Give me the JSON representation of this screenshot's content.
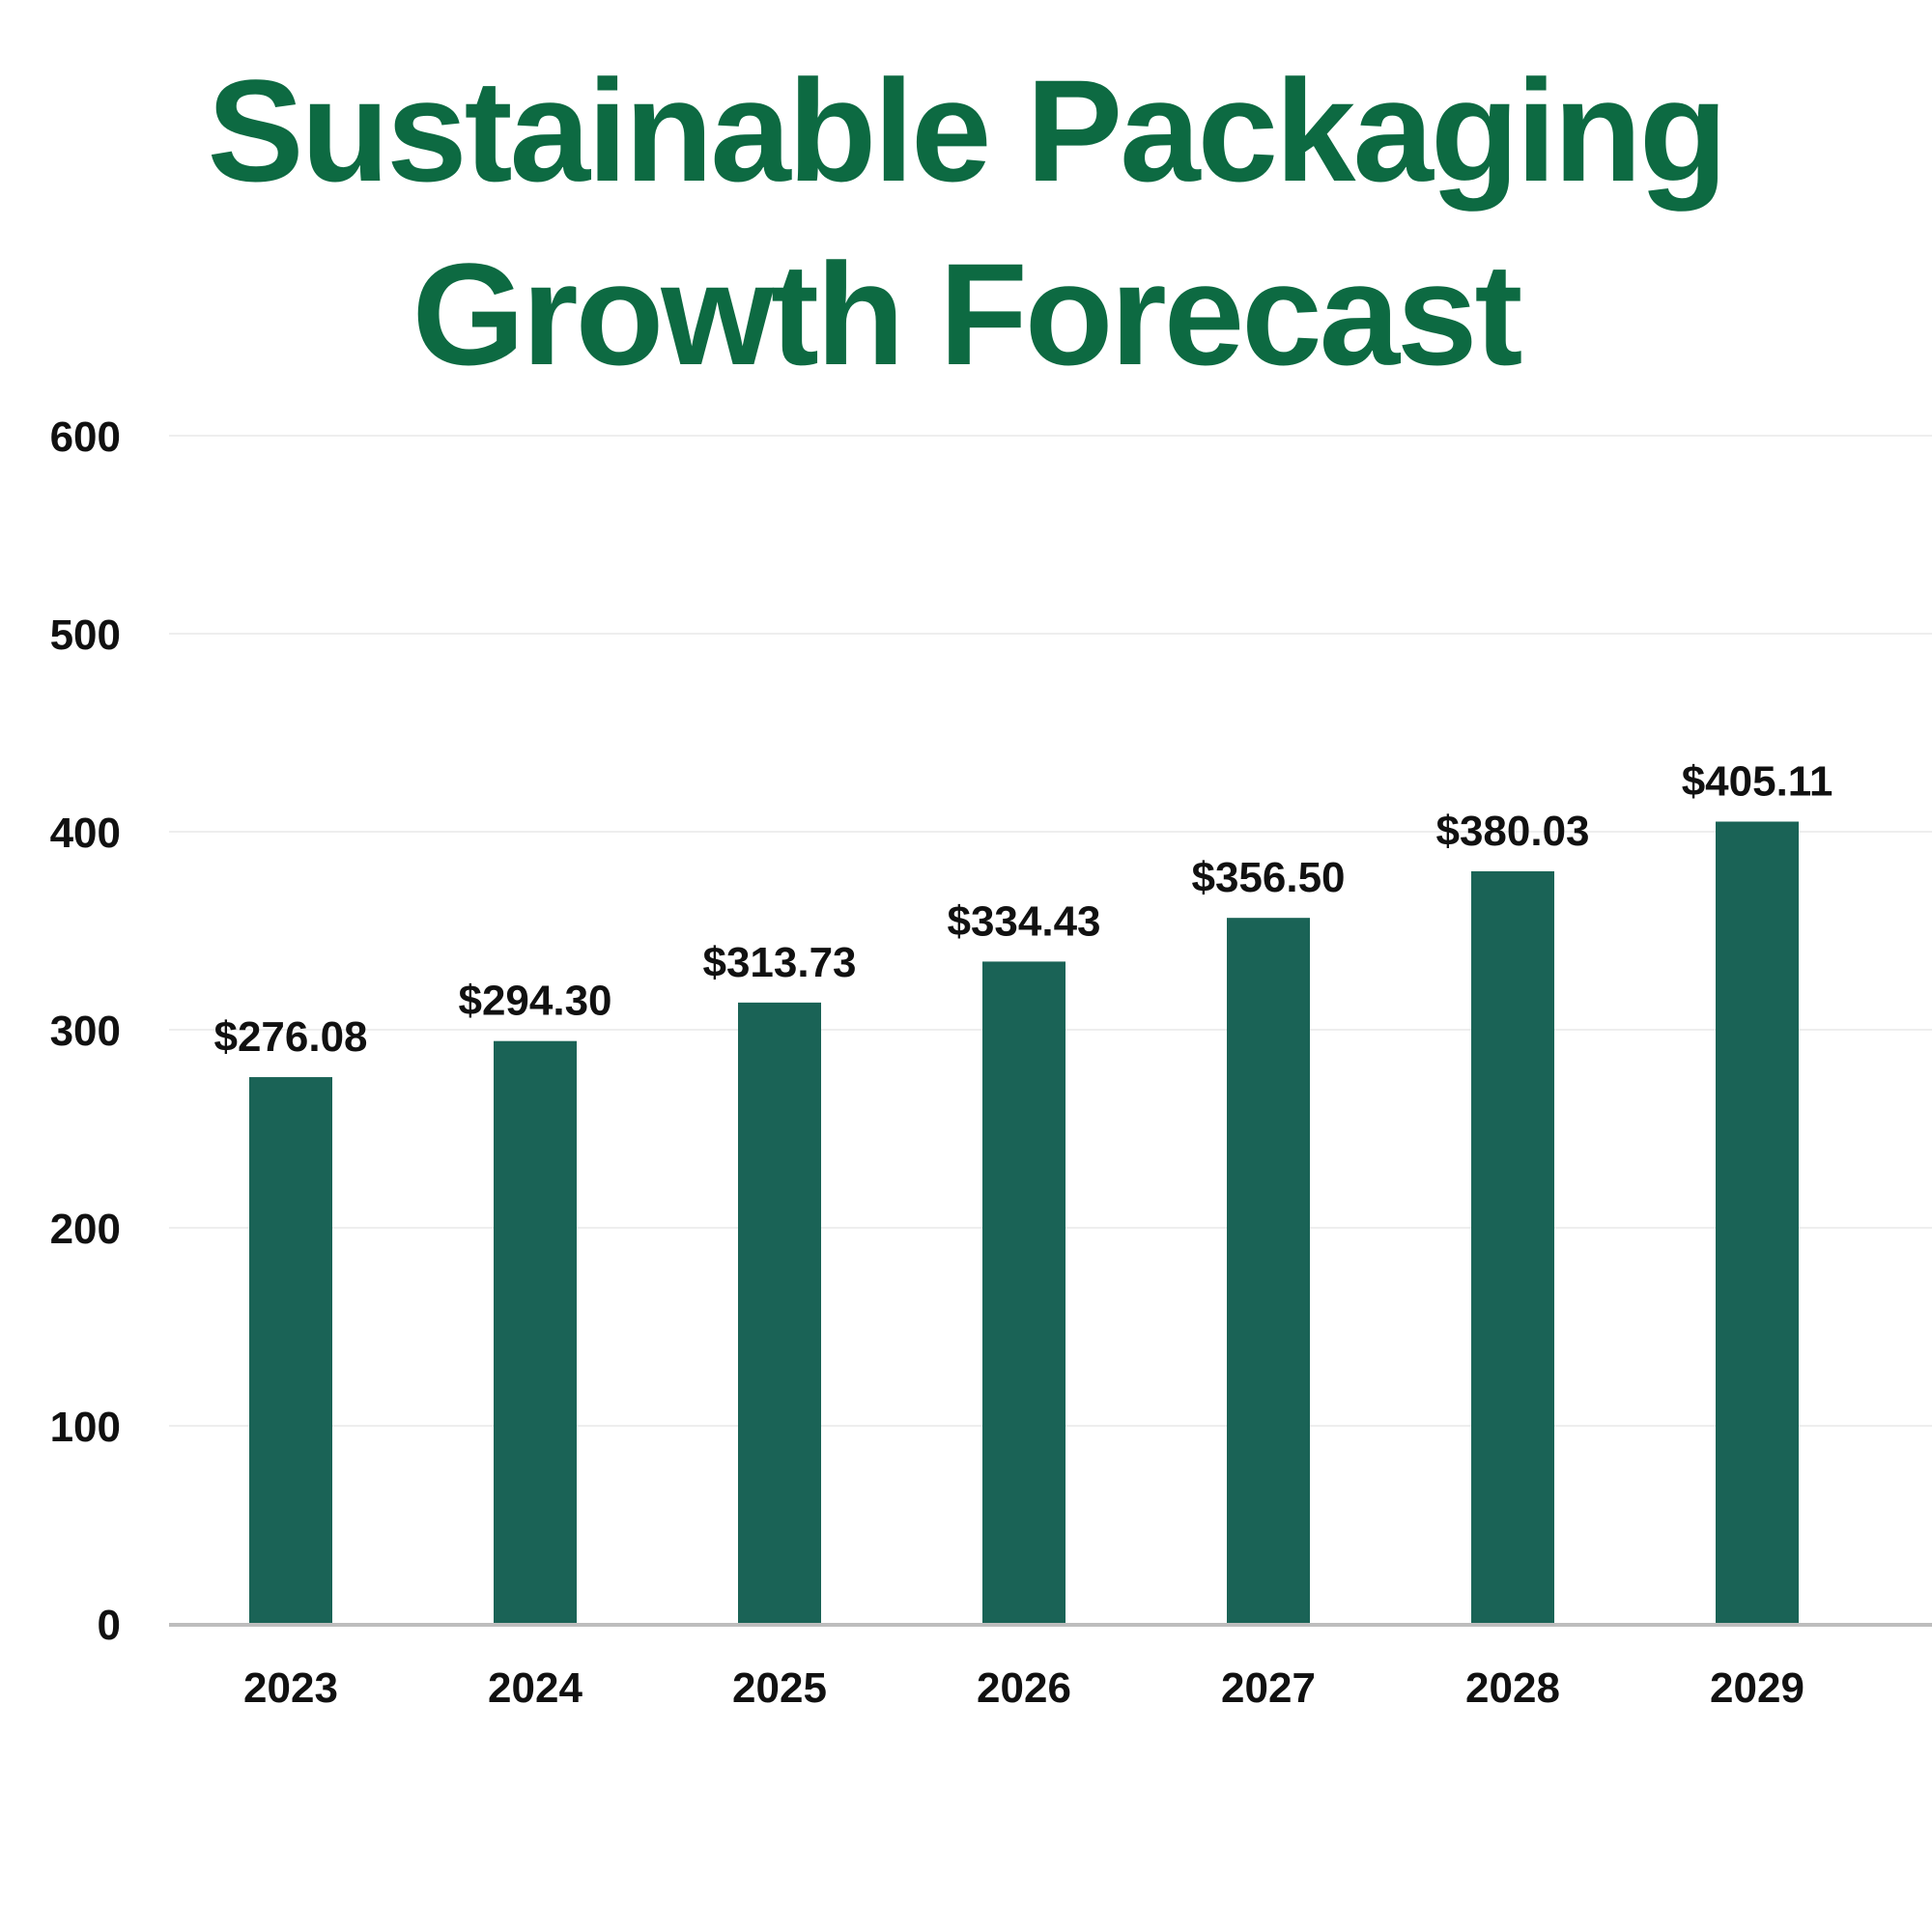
{
  "chart_data": {
    "type": "bar",
    "title_lines": [
      "Sustainable Packaging",
      "Growth Forecast"
    ],
    "categories": [
      "2023",
      "2024",
      "2025",
      "2026",
      "2027",
      "2028",
      "2029"
    ],
    "values": [
      276.08,
      294.3,
      313.73,
      334.43,
      356.5,
      380.03,
      405.11
    ],
    "data_labels": [
      "$276.08",
      "$294.30",
      "$313.73",
      "$334.43",
      "$356.50",
      "$380.03",
      "$405.11"
    ],
    "y_ticks": [
      0,
      100,
      200,
      300,
      400,
      500,
      600
    ],
    "ylim": [
      0,
      600
    ],
    "xlabel": "",
    "ylabel": "",
    "grid": true,
    "legend": "none",
    "colors": {
      "bar": "#1a6356",
      "title": "#0d6a42",
      "grid": "#eeeeee",
      "axis": "#bdbdbd"
    }
  }
}
